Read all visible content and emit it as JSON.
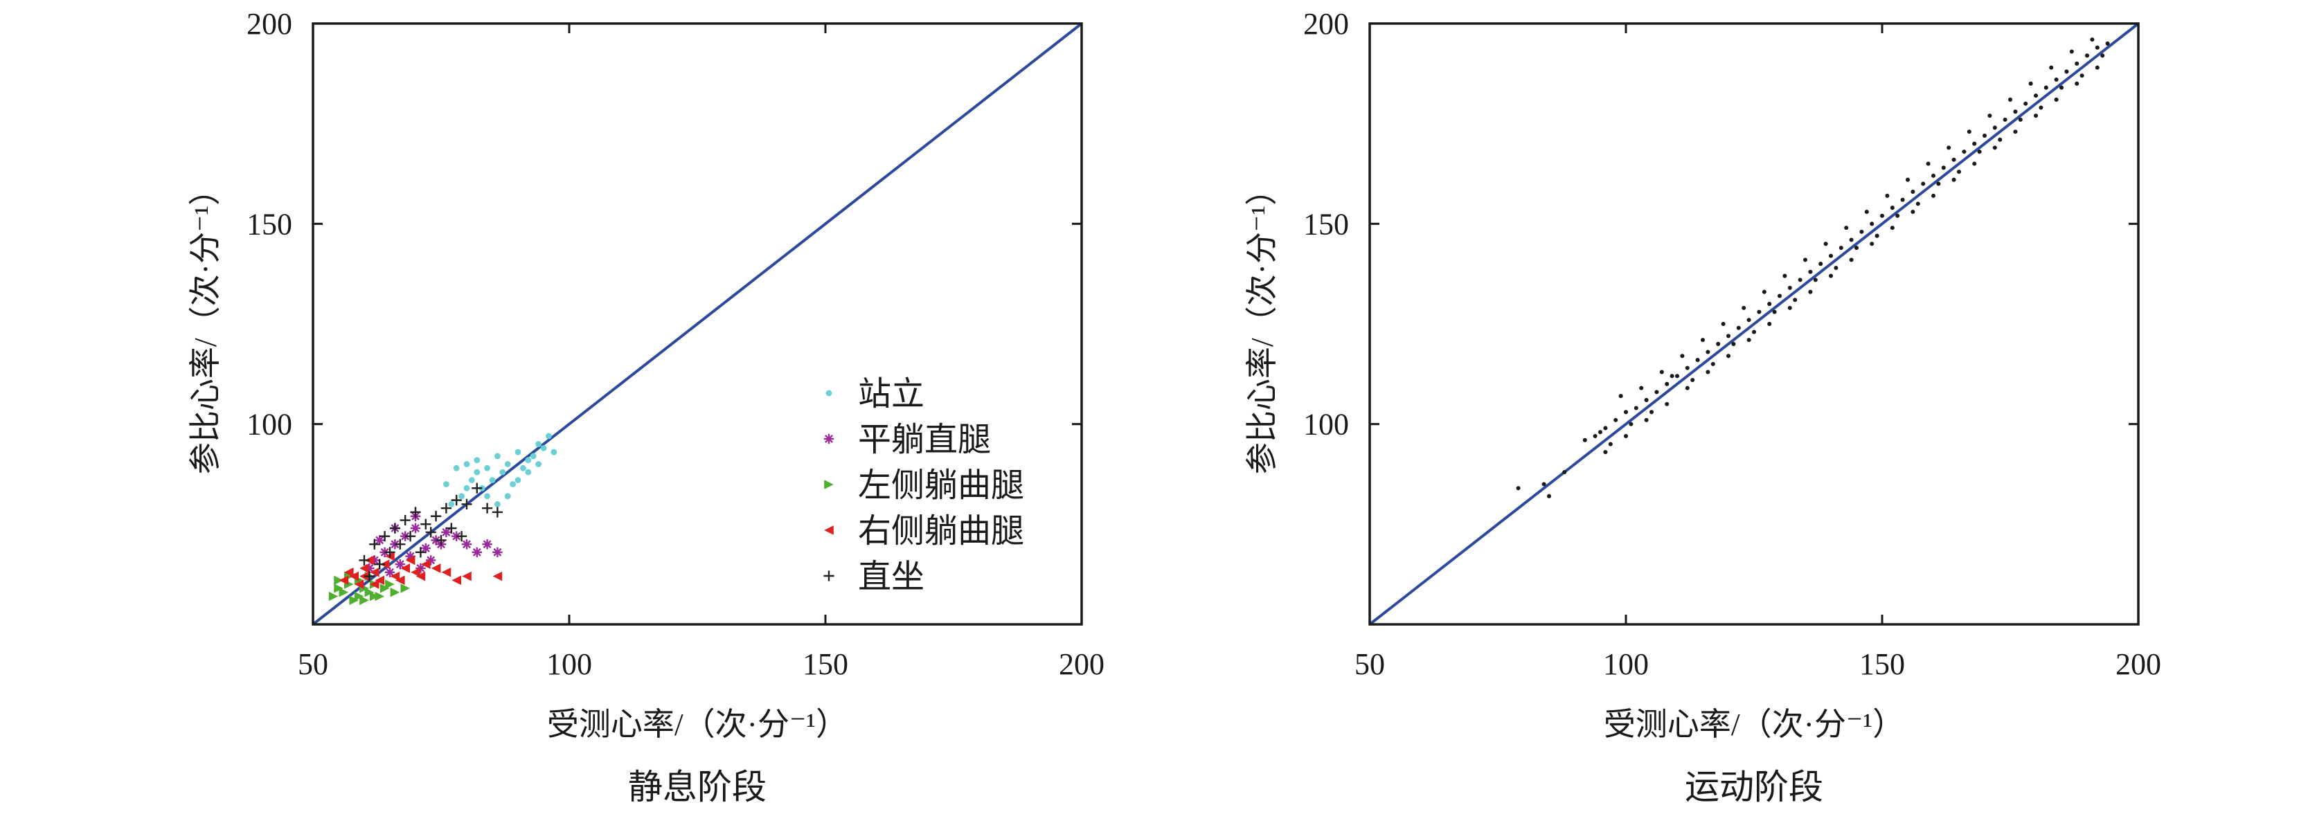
{
  "chart_data": [
    {
      "type": "scatter",
      "caption": "静息阶段",
      "xlabel": "受测心率/（次·分⁻¹）",
      "ylabel": "参比心率/（次·分⁻¹）",
      "xlim": [
        50,
        200
      ],
      "ylim": [
        50,
        200
      ],
      "xticks": [
        "50",
        "100",
        "150",
        "200"
      ],
      "yticks": [
        "200",
        "150",
        "100"
      ],
      "legend_position": "right-middle",
      "reference_line": {
        "x": [
          50,
          200
        ],
        "y": [
          50,
          200
        ],
        "color": "#2b4a9b"
      },
      "series": [
        {
          "name": "站立",
          "marker": "dot",
          "color": "#6ccfd6",
          "points": [
            [
              78,
              89
            ],
            [
              80,
              90
            ],
            [
              82,
              91
            ],
            [
              84,
              89
            ],
            [
              86,
              92
            ],
            [
              88,
              90
            ],
            [
              90,
              93
            ],
            [
              92,
              91
            ],
            [
              94,
              95
            ],
            [
              96,
              97
            ],
            [
              85,
              86
            ],
            [
              87,
              88
            ],
            [
              89,
              85
            ],
            [
              91,
              89
            ],
            [
              93,
              92
            ],
            [
              95,
              94
            ],
            [
              83,
              84
            ],
            [
              81,
              86
            ],
            [
              79,
              82
            ],
            [
              77,
              80
            ],
            [
              76,
              85
            ],
            [
              88,
              82
            ],
            [
              90,
              86
            ],
            [
              86,
              80
            ],
            [
              84,
              82
            ],
            [
              92,
              88
            ],
            [
              94,
              90
            ],
            [
              97,
              93
            ],
            [
              82,
              88
            ],
            [
              80,
              84
            ]
          ]
        },
        {
          "name": "平躺直腿",
          "marker": "star",
          "color": "#9b2a9b",
          "points": [
            [
              62,
              66
            ],
            [
              64,
              68
            ],
            [
              66,
              70
            ],
            [
              68,
              72
            ],
            [
              70,
              74
            ],
            [
              72,
              69
            ],
            [
              74,
              71
            ],
            [
              76,
              73
            ],
            [
              65,
              63
            ],
            [
              67,
              65
            ],
            [
              69,
              67
            ],
            [
              71,
              64
            ],
            [
              73,
              66
            ],
            [
              75,
              70
            ],
            [
              78,
              72
            ],
            [
              80,
              70
            ],
            [
              82,
              68
            ],
            [
              84,
              70
            ],
            [
              86,
              68
            ],
            [
              63,
              71
            ],
            [
              66,
              74
            ],
            [
              70,
              77
            ],
            [
              61,
              64
            ]
          ]
        },
        {
          "name": "左侧躺曲腿",
          "marker": "triangle-right",
          "color": "#4fb030",
          "points": [
            [
              54,
              57
            ],
            [
              55,
              59
            ],
            [
              56,
              58
            ],
            [
              57,
              60
            ],
            [
              58,
              56
            ],
            [
              59,
              57
            ],
            [
              60,
              59
            ],
            [
              61,
              58
            ],
            [
              62,
              60
            ],
            [
              63,
              57
            ],
            [
              64,
              59
            ],
            [
              55,
              61
            ],
            [
              57,
              62
            ],
            [
              59,
              61
            ],
            [
              61,
              62
            ],
            [
              65,
              60
            ],
            [
              66,
              58
            ],
            [
              68,
              59
            ],
            [
              60,
              56
            ],
            [
              62,
              57
            ]
          ]
        },
        {
          "name": "右侧躺曲腿",
          "marker": "triangle-left",
          "color": "#e02020",
          "points": [
            [
              56,
              61
            ],
            [
              58,
              62
            ],
            [
              60,
              64
            ],
            [
              62,
              63
            ],
            [
              64,
              65
            ],
            [
              66,
              62
            ],
            [
              68,
              64
            ],
            [
              70,
              63
            ],
            [
              72,
              65
            ],
            [
              57,
              63
            ],
            [
              59,
              60
            ],
            [
              61,
              66
            ],
            [
              63,
              61
            ],
            [
              65,
              67
            ],
            [
              67,
              61
            ],
            [
              69,
              66
            ],
            [
              71,
              62
            ],
            [
              74,
              64
            ],
            [
              76,
              63
            ],
            [
              78,
              61
            ],
            [
              80,
              62
            ],
            [
              86,
              62
            ],
            [
              60,
              62
            ],
            [
              62,
              60
            ]
          ]
        },
        {
          "name": "直坐",
          "marker": "plus",
          "color": "#222222",
          "points": [
            [
              60,
              66
            ],
            [
              62,
              70
            ],
            [
              64,
              72
            ],
            [
              66,
              74
            ],
            [
              68,
              76
            ],
            [
              70,
              78
            ],
            [
              72,
              75
            ],
            [
              74,
              77
            ],
            [
              76,
              79
            ],
            [
              78,
              81
            ],
            [
              80,
              80
            ],
            [
              82,
              84
            ],
            [
              84,
              79
            ],
            [
              86,
              78
            ],
            [
              65,
              68
            ],
            [
              67,
              70
            ],
            [
              69,
              72
            ],
            [
              71,
              68
            ],
            [
              73,
              73
            ],
            [
              75,
              71
            ],
            [
              77,
              74
            ],
            [
              79,
              72
            ],
            [
              61,
              62
            ],
            [
              63,
              65
            ]
          ]
        }
      ]
    },
    {
      "type": "scatter",
      "caption": "运动阶段",
      "xlabel": "受测心率/（次·分⁻¹）",
      "ylabel": "参比心率/（次·分⁻¹）",
      "xlim": [
        50,
        200
      ],
      "ylim": [
        50,
        200
      ],
      "xticks": [
        "50",
        "100",
        "150",
        "200"
      ],
      "yticks": [
        "200",
        "150",
        "100"
      ],
      "reference_line": {
        "x": [
          50,
          200
        ],
        "y": [
          50,
          200
        ],
        "color": "#2b4a9b"
      },
      "series": [
        {
          "marker": "dot",
          "color": "#1a1a1a",
          "points": [
            [
              79,
              84
            ],
            [
              84,
              85
            ],
            [
              85,
              82
            ],
            [
              88,
              88
            ],
            [
              92,
              96
            ],
            [
              94,
              97
            ],
            [
              96,
              99
            ],
            [
              98,
              101
            ],
            [
              99,
              107
            ],
            [
              100,
              103
            ],
            [
              102,
              104
            ],
            [
              104,
              106
            ],
            [
              106,
              108
            ],
            [
              108,
              110
            ],
            [
              110,
              112
            ],
            [
              112,
              114
            ],
            [
              114,
              116
            ],
            [
              116,
              118
            ],
            [
              118,
              120
            ],
            [
              120,
              122
            ],
            [
              122,
              124
            ],
            [
              124,
              126
            ],
            [
              126,
              128
            ],
            [
              128,
              130
            ],
            [
              130,
              132
            ],
            [
              132,
              134
            ],
            [
              134,
              136
            ],
            [
              136,
              138
            ],
            [
              138,
              140
            ],
            [
              140,
              142
            ],
            [
              142,
              144
            ],
            [
              144,
              146
            ],
            [
              146,
              148
            ],
            [
              148,
              150
            ],
            [
              150,
              152
            ],
            [
              152,
              154
            ],
            [
              154,
              156
            ],
            [
              156,
              158
            ],
            [
              158,
              160
            ],
            [
              160,
              162
            ],
            [
              162,
              164
            ],
            [
              164,
              166
            ],
            [
              166,
              168
            ],
            [
              168,
              170
            ],
            [
              170,
              172
            ],
            [
              172,
              174
            ],
            [
              174,
              176
            ],
            [
              176,
              178
            ],
            [
              178,
              180
            ],
            [
              180,
              182
            ],
            [
              182,
              184
            ],
            [
              184,
              186
            ],
            [
              186,
              188
            ],
            [
              188,
              190
            ],
            [
              190,
              192
            ],
            [
              192,
              194
            ],
            [
              194,
              195
            ],
            [
              96,
              93
            ],
            [
              100,
              97
            ],
            [
              104,
              101
            ],
            [
              108,
              105
            ],
            [
              112,
              109
            ],
            [
              116,
              113
            ],
            [
              120,
              117
            ],
            [
              124,
              121
            ],
            [
              128,
              125
            ],
            [
              132,
              129
            ],
            [
              136,
              133
            ],
            [
              140,
              137
            ],
            [
              144,
              141
            ],
            [
              148,
              145
            ],
            [
              152,
              149
            ],
            [
              156,
              153
            ],
            [
              160,
              157
            ],
            [
              164,
              161
            ],
            [
              168,
              165
            ],
            [
              172,
              169
            ],
            [
              176,
              173
            ],
            [
              180,
              177
            ],
            [
              184,
              181
            ],
            [
              188,
              185
            ],
            [
              192,
              189
            ],
            [
              103,
              109
            ],
            [
              107,
              113
            ],
            [
              111,
              117
            ],
            [
              115,
              121
            ],
            [
              119,
              125
            ],
            [
              123,
              129
            ],
            [
              127,
              133
            ],
            [
              131,
              137
            ],
            [
              135,
              141
            ],
            [
              139,
              145
            ],
            [
              143,
              149
            ],
            [
              147,
              153
            ],
            [
              151,
              157
            ],
            [
              155,
              161
            ],
            [
              159,
              165
            ],
            [
              163,
              169
            ],
            [
              167,
              173
            ],
            [
              171,
              177
            ],
            [
              175,
              181
            ],
            [
              179,
              185
            ],
            [
              183,
              189
            ],
            [
              187,
              193
            ],
            [
              191,
              196
            ],
            [
              95,
              98
            ],
            [
              97,
              95
            ],
            [
              101,
              100
            ],
            [
              105,
              103
            ],
            [
              109,
              112
            ],
            [
              113,
              111
            ],
            [
              117,
              115
            ],
            [
              121,
              120
            ],
            [
              125,
              123
            ],
            [
              129,
              128
            ],
            [
              133,
              131
            ],
            [
              137,
              136
            ],
            [
              141,
              139
            ],
            [
              145,
              144
            ],
            [
              149,
              147
            ],
            [
              153,
              152
            ],
            [
              157,
              155
            ],
            [
              161,
              160
            ],
            [
              165,
              163
            ],
            [
              169,
              168
            ],
            [
              173,
              171
            ],
            [
              177,
              176
            ],
            [
              181,
              179
            ],
            [
              185,
              184
            ],
            [
              189,
              187
            ],
            [
              193,
              192
            ]
          ]
        }
      ]
    }
  ]
}
